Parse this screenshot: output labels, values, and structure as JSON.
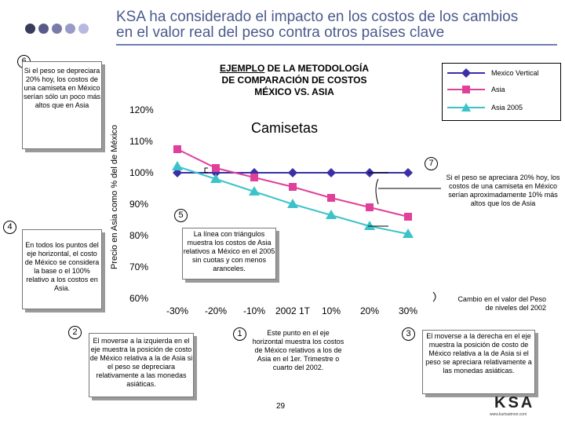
{
  "header": {
    "title_line1": "KSA ha considerado el impacto en los costos de los cambios",
    "title_line2": "en el valor real del peso contra otros países clave"
  },
  "colors": {
    "title": "#4a5a8c",
    "mexico": "#3a2fa6",
    "asia": "#e0409a",
    "asia2005": "#3cc3c9",
    "dots": [
      "#3a3a5a",
      "#5a5a8a",
      "#7a7aaa",
      "#9a9ac8",
      "#b8b8e0"
    ]
  },
  "chart_data": {
    "type": "line",
    "subtitle_line1_underlined": "EJEMPLO",
    "subtitle_line1_rest": "DE LA METODOLOGÍA",
    "subtitle_line2": "DE COMPARACIÓN DE COSTOS",
    "subtitle_line3": "MÉXICO VS. ASIA",
    "title": "Camisetas",
    "ylabel": "Precio en Asia como % del de México",
    "xlabel": "Cambio en el valor del Peso de niveles del 2002",
    "categories": [
      "-30%",
      "-20%",
      "-10%",
      "2002 1T",
      "10%",
      "20%",
      "30%"
    ],
    "yticks": [
      "60%",
      "70%",
      "80%",
      "90%",
      "100%",
      "110%",
      "120%"
    ],
    "ylim": [
      60,
      120
    ],
    "series": [
      {
        "name": "Mexico Vertical",
        "values": [
          100,
          100,
          100,
          100,
          100,
          100,
          100
        ],
        "marker": "diamond"
      },
      {
        "name": "Asia",
        "values": [
          107.5,
          101.5,
          98.5,
          95.5,
          92,
          89,
          86
        ],
        "marker": "square"
      },
      {
        "name": "Asia 2005",
        "values": [
          102,
          98,
          94,
          90,
          86.5,
          83,
          80.5
        ],
        "marker": "triangle"
      }
    ]
  },
  "callouts": {
    "n6": "6",
    "n4": "4",
    "n2": "2",
    "n1": "1",
    "n3": "3",
    "n5": "5",
    "n7": "7",
    "box_left_top": "Si el peso se depreciara 20% hoy, los costos de una camiseta en México serían sólo un poco más altos que en Asia",
    "box_left_mid": "En todos los puntos del eje horizontal, el costo de México se considera la base o el 100% relativo a los costos en Asia.",
    "box_bottom_left": "El moverse a la izquierda en el eje muestra la posición de costo de México relativa a la de Asia si el peso se depreciara relativamente a las monedas asiáticas.",
    "box_bottom_mid": "Este punto en el eje horizontal muestra los costos de México relativos a los de Asia en el 1er. Trimestre o cuarto del 2002.",
    "box_bottom_right": "El moverse a la derecha en el eje muestra la posición de costo de México relativa a la de Asia si el peso se apreciara relativamente a las monedas asiáticas.",
    "box_center": "La línea con triángulos muestra los costos de Asia relativos a México en el 2005 sin cuotas y con menos aranceles.",
    "box_right": "Si el peso se apreciara 20% hoy, los costos de una camiseta en México serían aproximadamente 10% más altos que los de Asia"
  },
  "footer": {
    "page_number": "29",
    "logo_text": "KSA",
    "logo_sub": "www.kurtsalmon.com"
  }
}
